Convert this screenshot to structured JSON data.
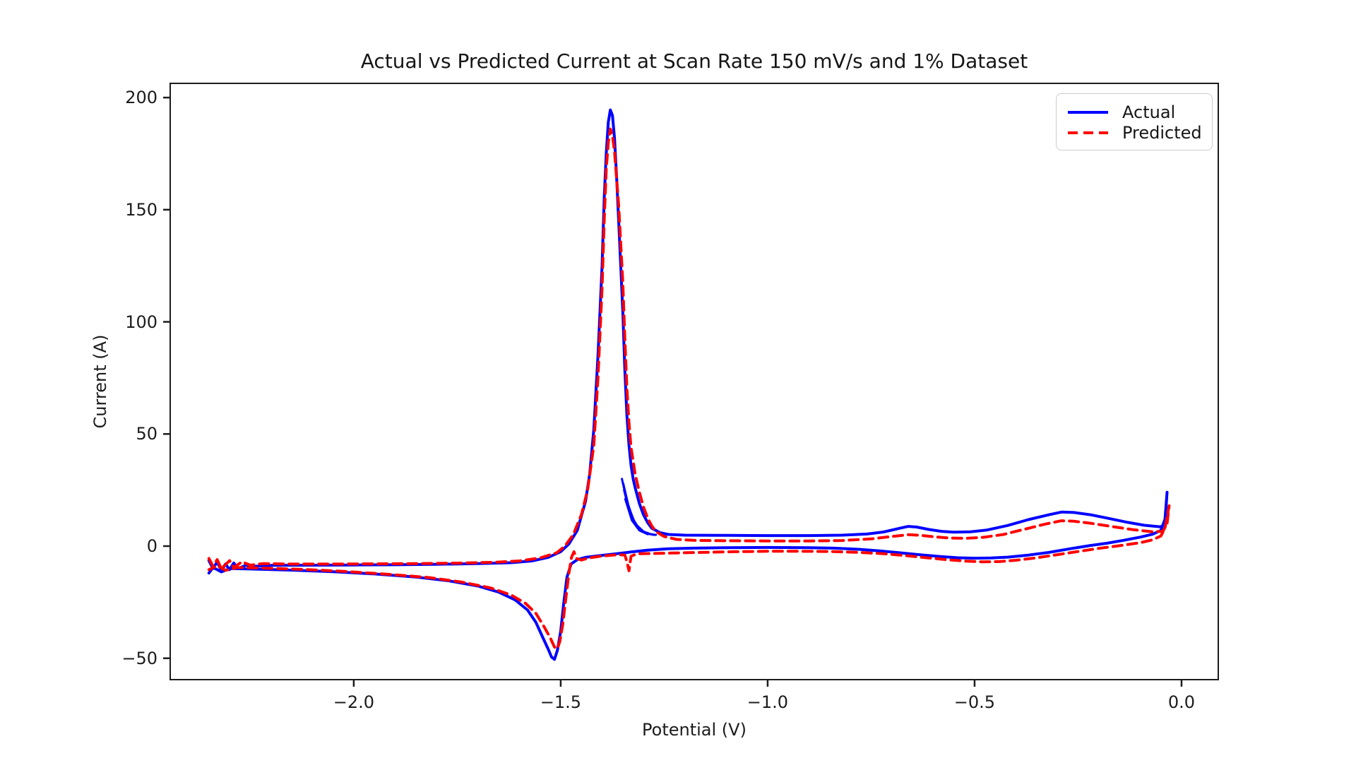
{
  "title": "Actual vs Predicted Current at Scan Rate 150 mV/s and 1% Dataset",
  "legend": {
    "items": [
      {
        "label": "Actual",
        "color": "#0000ff",
        "style": "solid"
      },
      {
        "label": "Predicted",
        "color": "#ff0000",
        "style": "dashed"
      }
    ]
  },
  "chart_data": {
    "type": "line",
    "title": "Actual vs Predicted Current at Scan Rate 150 mV/s and 1% Dataset",
    "xlabel": "Potential (V)",
    "ylabel": "Current (A)",
    "xlim": [
      -2.4452,
      0.0905
    ],
    "ylim": [
      -59.85,
      206.65
    ],
    "xticks": [
      -2.0,
      -1.5,
      -1.0,
      -0.5,
      0.0
    ],
    "xtick_labels": [
      "−2.0",
      "−1.5",
      "−1.0",
      "−0.5",
      "0.0"
    ],
    "yticks": [
      200,
      150,
      100,
      50,
      0,
      -50
    ],
    "ytick_labels": [
      "200",
      "150",
      "100",
      "50",
      "0",
      "−50"
    ],
    "grid": false,
    "legend_position": "upper right",
    "axis_color": "#1c1c1c",
    "series": [
      {
        "name": "Actual",
        "color": "#0000ff",
        "style": "solid",
        "points": [
          [
            -2.35,
            -6.5
          ],
          [
            -2.34,
            -10
          ],
          [
            -2.33,
            -7
          ],
          [
            -2.32,
            -11
          ],
          [
            -2.31,
            -8
          ],
          [
            -2.3,
            -10.5
          ],
          [
            -2.29,
            -7.5
          ],
          [
            -2.28,
            -10
          ],
          [
            -2.26,
            -8.5
          ],
          [
            -2.24,
            -9
          ],
          [
            -2.2,
            -8.6
          ],
          [
            -2.1,
            -8.5
          ],
          [
            -2.0,
            -8.4
          ],
          [
            -1.9,
            -8.3
          ],
          [
            -1.8,
            -8.1
          ],
          [
            -1.7,
            -7.8
          ],
          [
            -1.62,
            -7.4
          ],
          [
            -1.57,
            -6.6
          ],
          [
            -1.53,
            -5
          ],
          [
            -1.5,
            -2.5
          ],
          [
            -1.48,
            1
          ],
          [
            -1.46,
            7
          ],
          [
            -1.44,
            20
          ],
          [
            -1.43,
            32
          ],
          [
            -1.42,
            52
          ],
          [
            -1.41,
            85
          ],
          [
            -1.4,
            125
          ],
          [
            -1.395,
            155
          ],
          [
            -1.39,
            175
          ],
          [
            -1.385,
            189
          ],
          [
            -1.38,
            194.5
          ],
          [
            -1.375,
            192
          ],
          [
            -1.37,
            182
          ],
          [
            -1.365,
            165
          ],
          [
            -1.36,
            145
          ],
          [
            -1.35,
            105
          ],
          [
            -1.345,
            78
          ],
          [
            -1.34,
            58
          ],
          [
            -1.335,
            45
          ],
          [
            -1.33,
            36
          ],
          [
            -1.325,
            30
          ],
          [
            -1.32,
            26
          ],
          [
            -1.31,
            19
          ],
          [
            -1.3,
            14
          ],
          [
            -1.29,
            10.5
          ],
          [
            -1.28,
            8
          ],
          [
            -1.26,
            6
          ],
          [
            -1.24,
            5.2
          ],
          [
            -1.2,
            4.9
          ],
          [
            -1.1,
            4.8
          ],
          [
            -1.0,
            4.7
          ],
          [
            -0.9,
            4.7
          ],
          [
            -0.82,
            4.9
          ],
          [
            -0.76,
            5.4
          ],
          [
            -0.72,
            6.3
          ],
          [
            -0.68,
            8
          ],
          [
            -0.66,
            8.8
          ],
          [
            -0.64,
            8.5
          ],
          [
            -0.61,
            7.4
          ],
          [
            -0.58,
            6.6
          ],
          [
            -0.55,
            6.2
          ],
          [
            -0.51,
            6.4
          ],
          [
            -0.47,
            7.2
          ],
          [
            -0.42,
            9.2
          ],
          [
            -0.37,
            11.8
          ],
          [
            -0.32,
            14
          ],
          [
            -0.29,
            15.2
          ],
          [
            -0.26,
            15
          ],
          [
            -0.22,
            14
          ],
          [
            -0.18,
            12.5
          ],
          [
            -0.13,
            10.6
          ],
          [
            -0.09,
            9.3
          ],
          [
            -0.05,
            8.6
          ],
          [
            -0.04,
            10
          ],
          [
            -0.035,
            24
          ],
          [
            -0.04,
            12
          ],
          [
            -0.05,
            7
          ],
          [
            -0.07,
            5.3
          ],
          [
            -0.1,
            4
          ],
          [
            -0.14,
            2.6
          ],
          [
            -0.18,
            1.3
          ],
          [
            -0.22,
            0.3
          ],
          [
            -0.27,
            -1.2
          ],
          [
            -0.32,
            -2.8
          ],
          [
            -0.37,
            -4
          ],
          [
            -0.42,
            -4.9
          ],
          [
            -0.46,
            -5.3
          ],
          [
            -0.5,
            -5.4
          ],
          [
            -0.54,
            -5.2
          ],
          [
            -0.58,
            -4.7
          ],
          [
            -0.63,
            -3.9
          ],
          [
            -0.68,
            -3
          ],
          [
            -0.73,
            -2.1
          ],
          [
            -0.78,
            -1.4
          ],
          [
            -0.84,
            -0.9
          ],
          [
            -0.9,
            -0.7
          ],
          [
            -1.0,
            -0.6
          ],
          [
            -1.1,
            -0.7
          ],
          [
            -1.18,
            -0.9
          ],
          [
            -1.24,
            -1.2
          ],
          [
            -1.29,
            -1.8
          ],
          [
            -1.33,
            -2.6
          ],
          [
            -1.37,
            -3.5
          ],
          [
            -1.41,
            -4.3
          ],
          [
            -1.44,
            -5
          ],
          [
            -1.46,
            -6
          ],
          [
            -1.475,
            -8
          ],
          [
            -1.485,
            -14
          ],
          [
            -1.493,
            -26
          ],
          [
            -1.5,
            -38
          ],
          [
            -1.508,
            -46.5
          ],
          [
            -1.515,
            -50.5
          ],
          [
            -1.522,
            -49.5
          ],
          [
            -1.53,
            -46
          ],
          [
            -1.545,
            -40
          ],
          [
            -1.56,
            -34
          ],
          [
            -1.58,
            -28.5
          ],
          [
            -1.61,
            -24
          ],
          [
            -1.65,
            -20.5
          ],
          [
            -1.7,
            -17.8
          ],
          [
            -1.77,
            -15.5
          ],
          [
            -1.85,
            -13.8
          ],
          [
            -1.95,
            -12.4
          ],
          [
            -2.05,
            -11.4
          ],
          [
            -2.15,
            -10.7
          ],
          [
            -2.25,
            -10.2
          ],
          [
            -2.3,
            -10
          ],
          [
            -2.32,
            -11.5
          ],
          [
            -2.34,
            -9.5
          ],
          [
            -2.35,
            -12
          ]
        ]
      },
      {
        "name": "Predicted",
        "color": "#ff0000",
        "style": "dashed",
        "points": [
          [
            -2.35,
            -5.5
          ],
          [
            -2.34,
            -9
          ],
          [
            -2.33,
            -6
          ],
          [
            -2.32,
            -10
          ],
          [
            -2.3,
            -6.5
          ],
          [
            -2.29,
            -9.5
          ],
          [
            -2.27,
            -7
          ],
          [
            -2.25,
            -8.5
          ],
          [
            -2.22,
            -7.8
          ],
          [
            -2.15,
            -8
          ],
          [
            -2.05,
            -8
          ],
          [
            -1.95,
            -7.9
          ],
          [
            -1.85,
            -7.8
          ],
          [
            -1.75,
            -7.6
          ],
          [
            -1.66,
            -7.2
          ],
          [
            -1.6,
            -6.6
          ],
          [
            -1.55,
            -5.3
          ],
          [
            -1.51,
            -3
          ],
          [
            -1.49,
            0
          ],
          [
            -1.47,
            5
          ],
          [
            -1.45,
            14
          ],
          [
            -1.435,
            25
          ],
          [
            -1.42,
            45
          ],
          [
            -1.41,
            75
          ],
          [
            -1.4,
            115
          ],
          [
            -1.395,
            145
          ],
          [
            -1.39,
            168
          ],
          [
            -1.385,
            180
          ],
          [
            -1.38,
            186
          ],
          [
            -1.375,
            183
          ],
          [
            -1.37,
            176
          ],
          [
            -1.36,
            152
          ],
          [
            -1.35,
            118
          ],
          [
            -1.345,
            92
          ],
          [
            -1.34,
            70
          ],
          [
            -1.335,
            55
          ],
          [
            -1.33,
            44
          ],
          [
            -1.32,
            32
          ],
          [
            -1.31,
            24
          ],
          [
            -1.3,
            17.5
          ],
          [
            -1.29,
            12.5
          ],
          [
            -1.28,
            9
          ],
          [
            -1.27,
            6.5
          ],
          [
            -1.25,
            4.3
          ],
          [
            -1.22,
            3
          ],
          [
            -1.18,
            2.6
          ],
          [
            -1.1,
            2.4
          ],
          [
            -1.0,
            2.3
          ],
          [
            -0.9,
            2.3
          ],
          [
            -0.82,
            2.5
          ],
          [
            -0.75,
            3.2
          ],
          [
            -0.7,
            4.3
          ],
          [
            -0.66,
            5.1
          ],
          [
            -0.63,
            4.8
          ],
          [
            -0.6,
            4.2
          ],
          [
            -0.56,
            3.6
          ],
          [
            -0.52,
            3.5
          ],
          [
            -0.48,
            3.9
          ],
          [
            -0.43,
            5.2
          ],
          [
            -0.38,
            7.5
          ],
          [
            -0.33,
            9.8
          ],
          [
            -0.29,
            11.3
          ],
          [
            -0.26,
            11.1
          ],
          [
            -0.22,
            10.2
          ],
          [
            -0.17,
            8.8
          ],
          [
            -0.12,
            7.4
          ],
          [
            -0.07,
            6.4
          ],
          [
            -0.045,
            6.6
          ],
          [
            -0.035,
            10
          ],
          [
            -0.03,
            18
          ],
          [
            -0.04,
            8
          ],
          [
            -0.05,
            4.5
          ],
          [
            -0.07,
            2.8
          ],
          [
            -0.1,
            1.5
          ],
          [
            -0.15,
            0.2
          ],
          [
            -0.2,
            -1
          ],
          [
            -0.25,
            -2.4
          ],
          [
            -0.3,
            -3.8
          ],
          [
            -0.35,
            -5.2
          ],
          [
            -0.4,
            -6.3
          ],
          [
            -0.44,
            -6.9
          ],
          [
            -0.48,
            -7
          ],
          [
            -0.52,
            -6.7
          ],
          [
            -0.57,
            -6
          ],
          [
            -0.62,
            -5.1
          ],
          [
            -0.67,
            -4.2
          ],
          [
            -0.72,
            -3.4
          ],
          [
            -0.78,
            -2.8
          ],
          [
            -0.85,
            -2.4
          ],
          [
            -0.92,
            -2.3
          ],
          [
            -1.0,
            -2.3
          ],
          [
            -1.08,
            -2.5
          ],
          [
            -1.16,
            -2.8
          ],
          [
            -1.23,
            -3.1
          ],
          [
            -1.28,
            -3.3
          ],
          [
            -1.315,
            -3.4
          ],
          [
            -1.33,
            -4.5
          ],
          [
            -1.335,
            -11
          ],
          [
            -1.34,
            -7
          ],
          [
            -1.345,
            -4
          ],
          [
            -1.36,
            -3.8
          ],
          [
            -1.4,
            -4.4
          ],
          [
            -1.43,
            -5.2
          ],
          [
            -1.45,
            -6.2
          ],
          [
            -1.462,
            -5.5
          ],
          [
            -1.468,
            -2.5
          ],
          [
            -1.474,
            -5
          ],
          [
            -1.48,
            -12
          ],
          [
            -1.488,
            -24
          ],
          [
            -1.495,
            -35
          ],
          [
            -1.502,
            -42.5
          ],
          [
            -1.508,
            -45.8
          ],
          [
            -1.515,
            -45
          ],
          [
            -1.525,
            -41
          ],
          [
            -1.54,
            -36
          ],
          [
            -1.56,
            -30
          ],
          [
            -1.585,
            -25.5
          ],
          [
            -1.62,
            -21.8
          ],
          [
            -1.67,
            -18.6
          ],
          [
            -1.74,
            -16
          ],
          [
            -1.82,
            -14
          ],
          [
            -1.92,
            -12.5
          ],
          [
            -2.02,
            -11.3
          ],
          [
            -2.12,
            -10.4
          ],
          [
            -2.22,
            -9.8
          ],
          [
            -2.28,
            -9.5
          ],
          [
            -2.31,
            -10.8
          ],
          [
            -2.33,
            -8.8
          ],
          [
            -2.35,
            -10.5
          ]
        ]
      }
    ],
    "actual_extra_cycles": [
      [
        [
          -1.352,
          30
        ],
        [
          -1.34,
          20
        ],
        [
          -1.325,
          12
        ],
        [
          -1.31,
          7.5
        ],
        [
          -1.29,
          5.5
        ],
        [
          -1.27,
          5
        ]
      ],
      [
        [
          -1.349,
          28
        ],
        [
          -1.335,
          17
        ],
        [
          -1.32,
          10
        ],
        [
          -1.3,
          6.5
        ],
        [
          -1.28,
          5.2
        ]
      ],
      [
        [
          -1.347,
          25
        ],
        [
          -1.332,
          14
        ],
        [
          -1.315,
          8.5
        ],
        [
          -1.295,
          5.8
        ],
        [
          -1.275,
          5
        ]
      ],
      [
        [
          -1.344,
          21
        ],
        [
          -1.328,
          11.5
        ],
        [
          -1.31,
          7
        ],
        [
          -1.29,
          5.3
        ]
      ]
    ]
  }
}
